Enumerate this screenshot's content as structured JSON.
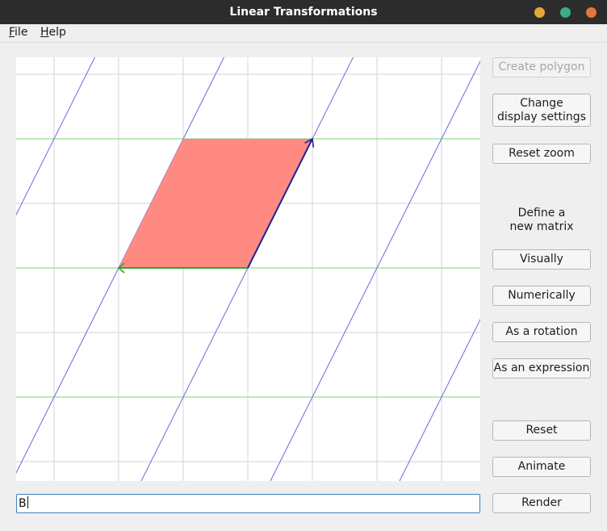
{
  "window": {
    "title": "Linear Transformations",
    "controls": {
      "minimize_color": "#e5a73a",
      "maximize_color": "#3bab8a",
      "close_color": "#e2763f"
    }
  },
  "menu": [
    {
      "mnemonic": "F",
      "rest": "ile"
    },
    {
      "mnemonic": "H",
      "rest": "elp"
    }
  ],
  "buttons": {
    "create_polygon": "Create polygon",
    "change_display_line1": "Change",
    "change_display_line2": "display settings",
    "reset_zoom": "Reset zoom",
    "visually": "Visually",
    "numerically": "Numerically",
    "as_rotation": "As a rotation",
    "as_expression": "As an expression",
    "reset": "Reset",
    "animate": "Animate",
    "render": "Render"
  },
  "define_matrix_label": {
    "line1": "Define a",
    "line2": "new matrix"
  },
  "expression_input": {
    "value": "B"
  },
  "plot": {
    "matrix_columns": {
      "i_hat": [
        -2,
        0
      ],
      "j_hat": [
        1,
        2
      ]
    },
    "colors": {
      "background_grid": "#dcdcdc",
      "transformed_horizontal": "#98e694",
      "transformed_slanted": "#6a6ae0",
      "polygon_fill": "#ff8a82",
      "i_hat_vector": "#2ca82c",
      "j_hat_vector": "#1f1f9a"
    }
  }
}
